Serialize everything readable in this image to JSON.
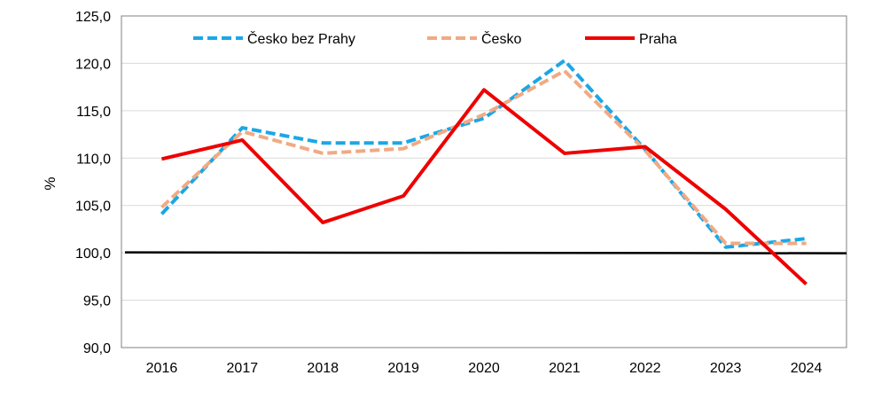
{
  "chart_data": {
    "type": "line",
    "categories": [
      "2016",
      "2017",
      "2018",
      "2019",
      "2020",
      "2021",
      "2022",
      "2023",
      "2024"
    ],
    "series": [
      {
        "name": "Česko bez Prahy",
        "color": "#1aa7e6",
        "dash": "dashed",
        "values": [
          104.1,
          113.2,
          111.6,
          111.6,
          114.2,
          120.3,
          110.9,
          100.6,
          101.5
        ]
      },
      {
        "name": "Česko",
        "color": "#f0aa84",
        "dash": "dashed",
        "values": [
          104.8,
          112.8,
          110.5,
          111.0,
          114.6,
          119.2,
          110.8,
          101.0,
          101.0
        ]
      },
      {
        "name": "Praha",
        "color": "#ee0000",
        "dash": "solid",
        "values": [
          109.9,
          111.9,
          103.2,
          106.0,
          117.2,
          110.5,
          111.2,
          104.6,
          96.7
        ]
      }
    ],
    "reference_line": {
      "value": 100.0,
      "color": "#000000"
    },
    "ylabel": "%",
    "xlabel": "",
    "ylim": [
      90.0,
      125.0
    ],
    "yticks": [
      "90,0",
      "95,0",
      "100,0",
      "105,0",
      "110,0",
      "115,0",
      "120,0",
      "125,0"
    ],
    "grid": "horizontal",
    "legend_position": "top"
  }
}
